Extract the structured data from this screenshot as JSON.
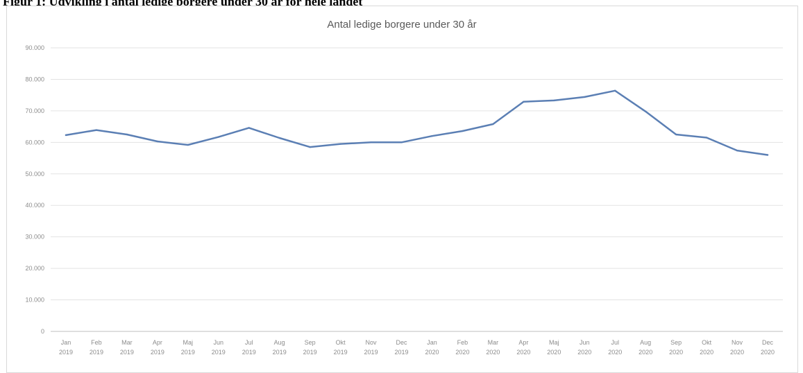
{
  "figure_caption": "Figur 1: Udvikling i antal ledige borgere under 30 år for hele landet",
  "chart_data": {
    "type": "line",
    "title": "Antal ledige borgere under 30 år",
    "xlabel": "",
    "ylabel": "",
    "ylim": [
      0,
      90000
    ],
    "y_ticks": [
      "0",
      "10.000",
      "20.000",
      "30.000",
      "40.000",
      "50.000",
      "60.000",
      "70.000",
      "80.000",
      "90.000"
    ],
    "grid": true,
    "legend": "none",
    "line_color": "#5b7fb4",
    "categories": [
      [
        "Jan",
        "2019"
      ],
      [
        "Feb",
        "2019"
      ],
      [
        "Mar",
        "2019"
      ],
      [
        "Apr",
        "2019"
      ],
      [
        "Maj",
        "2019"
      ],
      [
        "Jun",
        "2019"
      ],
      [
        "Jul",
        "2019"
      ],
      [
        "Aug",
        "2019"
      ],
      [
        "Sep",
        "2019"
      ],
      [
        "Okt",
        "2019"
      ],
      [
        "Nov",
        "2019"
      ],
      [
        "Dec",
        "2019"
      ],
      [
        "Jan",
        "2020"
      ],
      [
        "Feb",
        "2020"
      ],
      [
        "Mar",
        "2020"
      ],
      [
        "Apr",
        "2020"
      ],
      [
        "Maj",
        "2020"
      ],
      [
        "Jun",
        "2020"
      ],
      [
        "Jul",
        "2020"
      ],
      [
        "Aug",
        "2020"
      ],
      [
        "Sep",
        "2020"
      ],
      [
        "Okt",
        "2020"
      ],
      [
        "Nov",
        "2020"
      ],
      [
        "Dec",
        "2020"
      ]
    ],
    "values": [
      62300,
      63900,
      62500,
      60300,
      59200,
      61700,
      64600,
      61400,
      58500,
      59500,
      60000,
      60000,
      62000,
      63600,
      65800,
      72900,
      73300,
      74400,
      76400,
      69800,
      62500,
      61500,
      57400,
      56000
    ]
  }
}
